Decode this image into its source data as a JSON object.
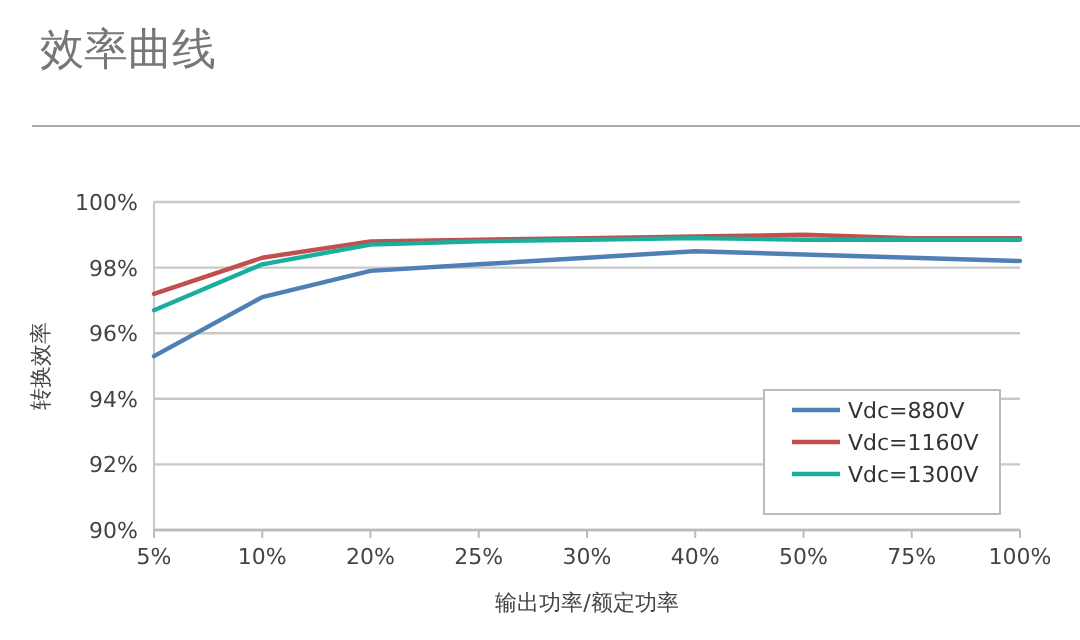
{
  "chart_data": {
    "type": "line",
    "title": "效率曲线",
    "xlabel": "输出功率/额定功率",
    "ylabel": "转换效率",
    "categories": [
      "5%",
      "10%",
      "20%",
      "25%",
      "30%",
      "40%",
      "50%",
      "75%",
      "100%"
    ],
    "series": [
      {
        "name": "Vdc=880V",
        "color": "#4f7fb5",
        "values": [
          95.3,
          97.1,
          97.9,
          98.1,
          98.3,
          98.5,
          98.4,
          98.3,
          98.2
        ]
      },
      {
        "name": "Vdc=1160V",
        "color": "#c0504d",
        "values": [
          97.2,
          98.3,
          98.8,
          98.85,
          98.9,
          98.95,
          99.0,
          98.9,
          98.9
        ]
      },
      {
        "name": "Vdc=1300V",
        "color": "#1aae9f",
        "values": [
          96.7,
          98.1,
          98.7,
          98.8,
          98.85,
          98.9,
          98.85,
          98.85,
          98.85
        ]
      }
    ],
    "ylim": [
      90,
      100
    ],
    "yticks": [
      {
        "value": 90,
        "label": "90%"
      },
      {
        "value": 92,
        "label": "92%"
      },
      {
        "value": 94,
        "label": "94%"
      },
      {
        "value": 96,
        "label": "96%"
      },
      {
        "value": 98,
        "label": "98%"
      },
      {
        "value": 100,
        "label": "100%"
      }
    ],
    "grid": "y",
    "legend": "bottom right",
    "marker": "none",
    "line_style": "solid"
  }
}
